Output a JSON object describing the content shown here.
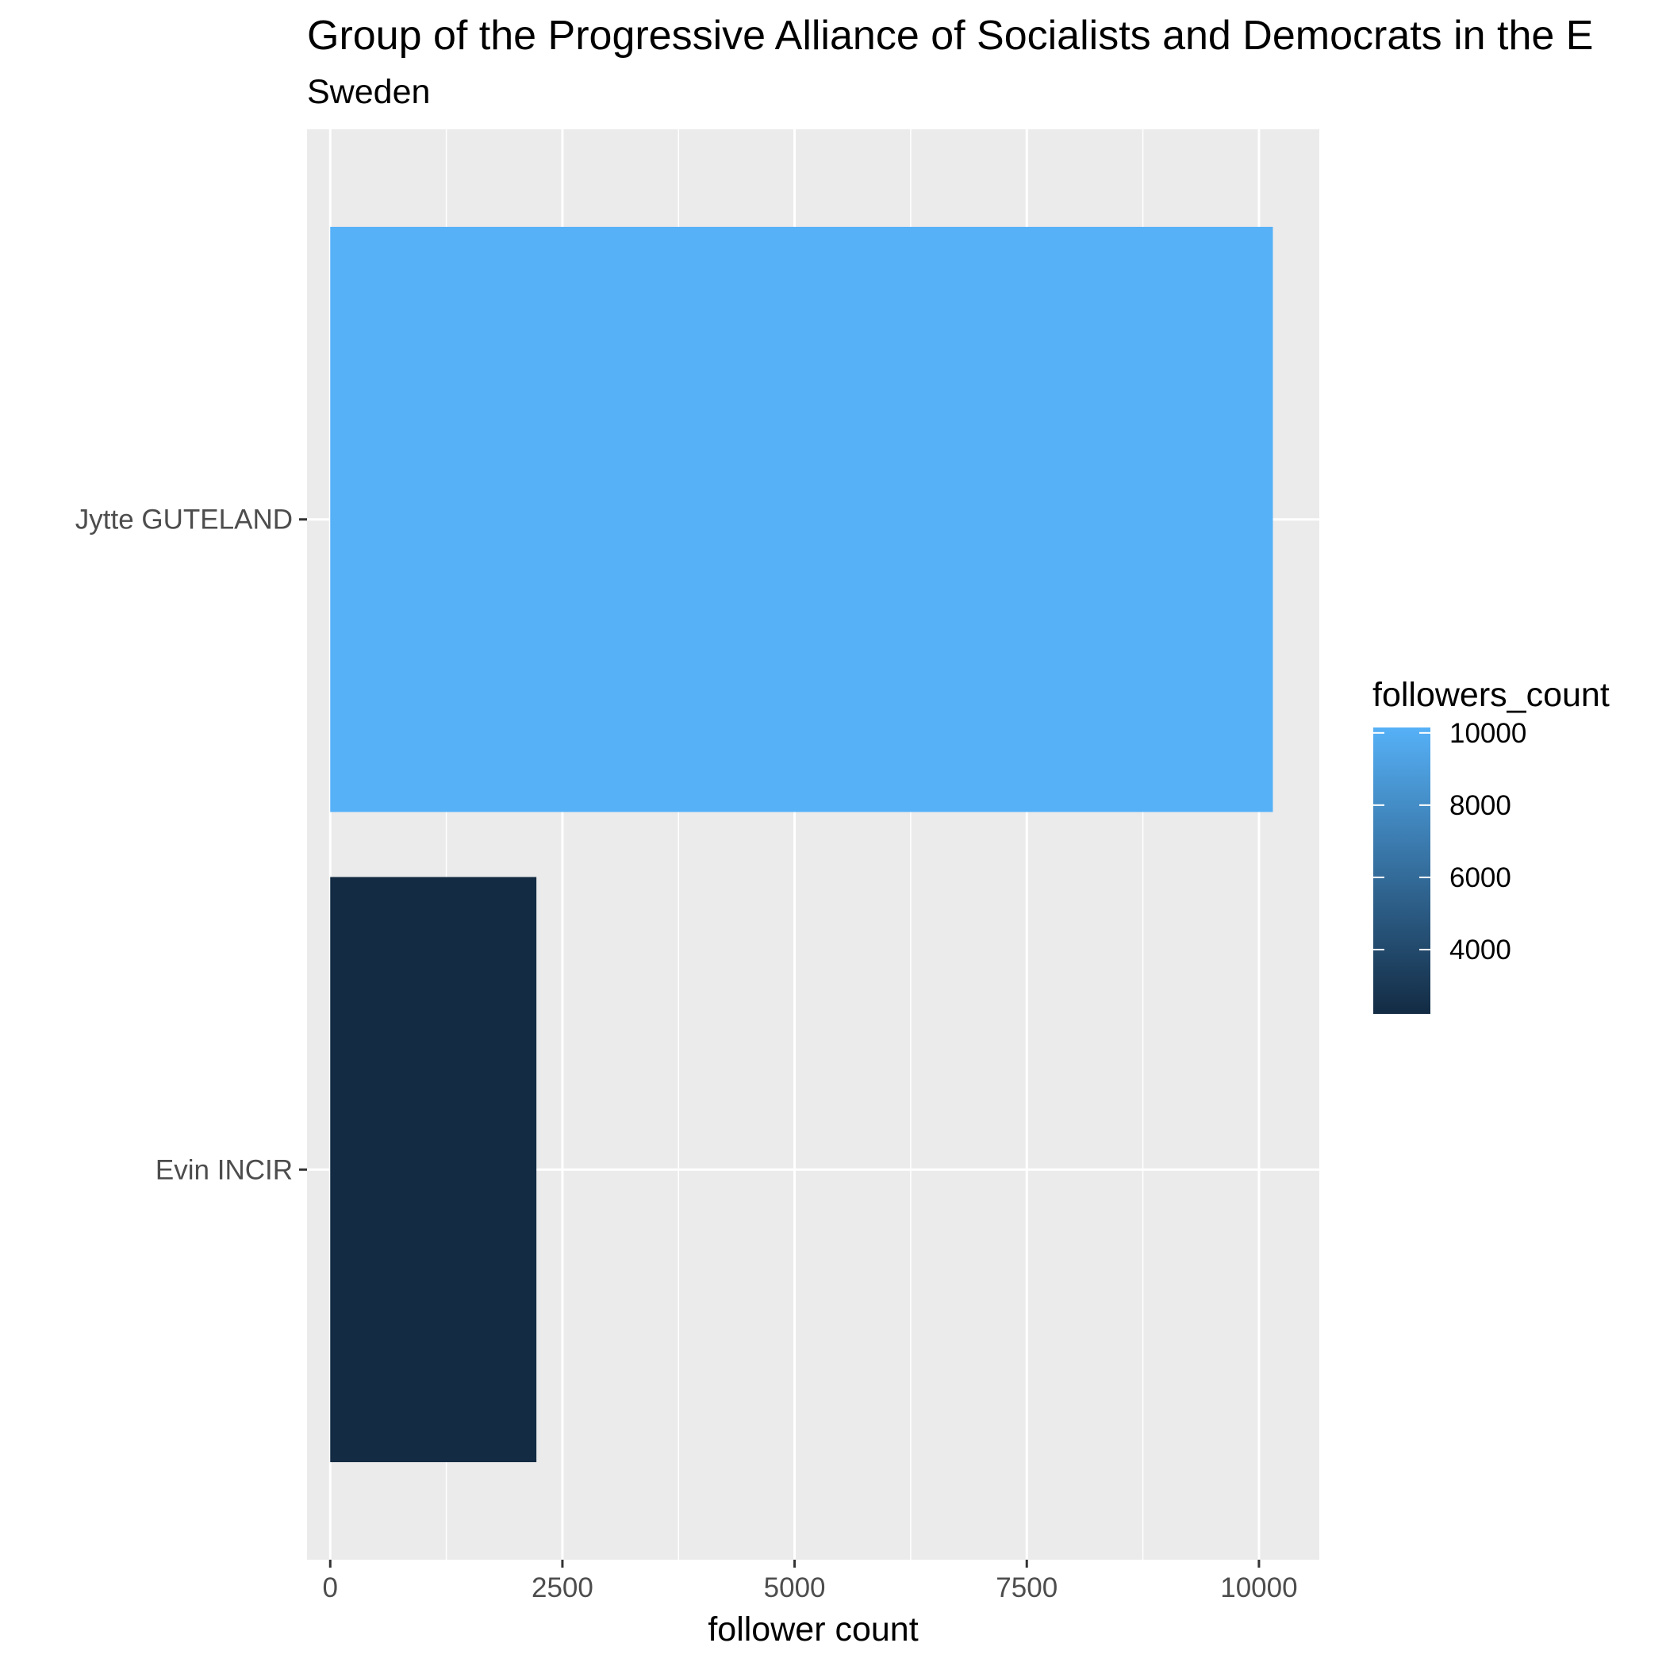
{
  "chart_data": {
    "type": "bar",
    "orientation": "horizontal",
    "title": "Group of the Progressive Alliance of Socialists and Democrats in the E",
    "subtitle": "Sweden",
    "xlabel": "follower count",
    "ylabel": "",
    "categories": [
      "Jytte GUTELAND",
      "Evin INCIR"
    ],
    "values": [
      10150,
      2220
    ],
    "xlim": [
      -250,
      10650
    ],
    "xticks": [
      0,
      2500,
      5000,
      7500,
      10000
    ],
    "xtick_labels": [
      "0",
      "2500",
      "5000",
      "7500",
      "10000"
    ],
    "grid": true,
    "legend": {
      "title": "followers_count",
      "placement": "right",
      "range": [
        2220,
        10150
      ],
      "ticks": [
        4000,
        6000,
        8000,
        10000
      ],
      "tick_labels": [
        "4000",
        "6000",
        "8000",
        "10000"
      ],
      "color_low": "#132b43",
      "color_high": "#56b1f7"
    },
    "colors": {
      "panel_background": "#ebebeb",
      "grid_line": "#ffffff",
      "low": "#132b43",
      "high": "#56b1f7"
    }
  }
}
